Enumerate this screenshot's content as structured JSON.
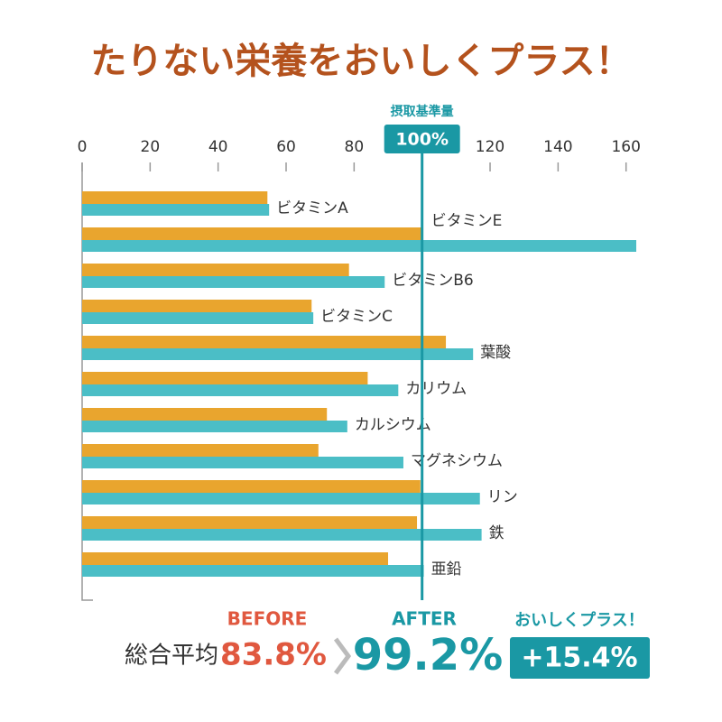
{
  "chart_data": {
    "type": "bar",
    "orientation": "horizontal",
    "title": "たりない栄養をおいしくプラス！",
    "categories": [
      "ビタミンA",
      "ビタミンE",
      "ビタミンB6",
      "ビタミンC",
      "葉酸",
      "カリウム",
      "カルシウム",
      "マグネシウム",
      "リン",
      "鉄",
      "亜鉛"
    ],
    "series": [
      {
        "name": "BEFORE",
        "color": "#e9a52e",
        "values": [
          54.5,
          100,
          78.5,
          67.5,
          107,
          84,
          72,
          69.5,
          99.5,
          98.5,
          90
        ]
      },
      {
        "name": "AFTER",
        "color": "#4bbec6",
        "values": [
          55,
          163,
          89,
          68,
          115,
          93,
          78,
          94.5,
          117,
          117.5,
          100.5
        ]
      }
    ],
    "xlim": [
      0,
      163
    ],
    "xticks": [
      0,
      20,
      40,
      60,
      80,
      100,
      120,
      140,
      160
    ],
    "reference": {
      "value": 100,
      "label": "100%",
      "title": "摂取基準量",
      "color": "#1a98a4"
    },
    "summary": {
      "label": "総合平均",
      "before": "83.8%",
      "after": "99.2%",
      "plus_title": "おいしくプラス！",
      "plus": "+15.4%"
    }
  }
}
